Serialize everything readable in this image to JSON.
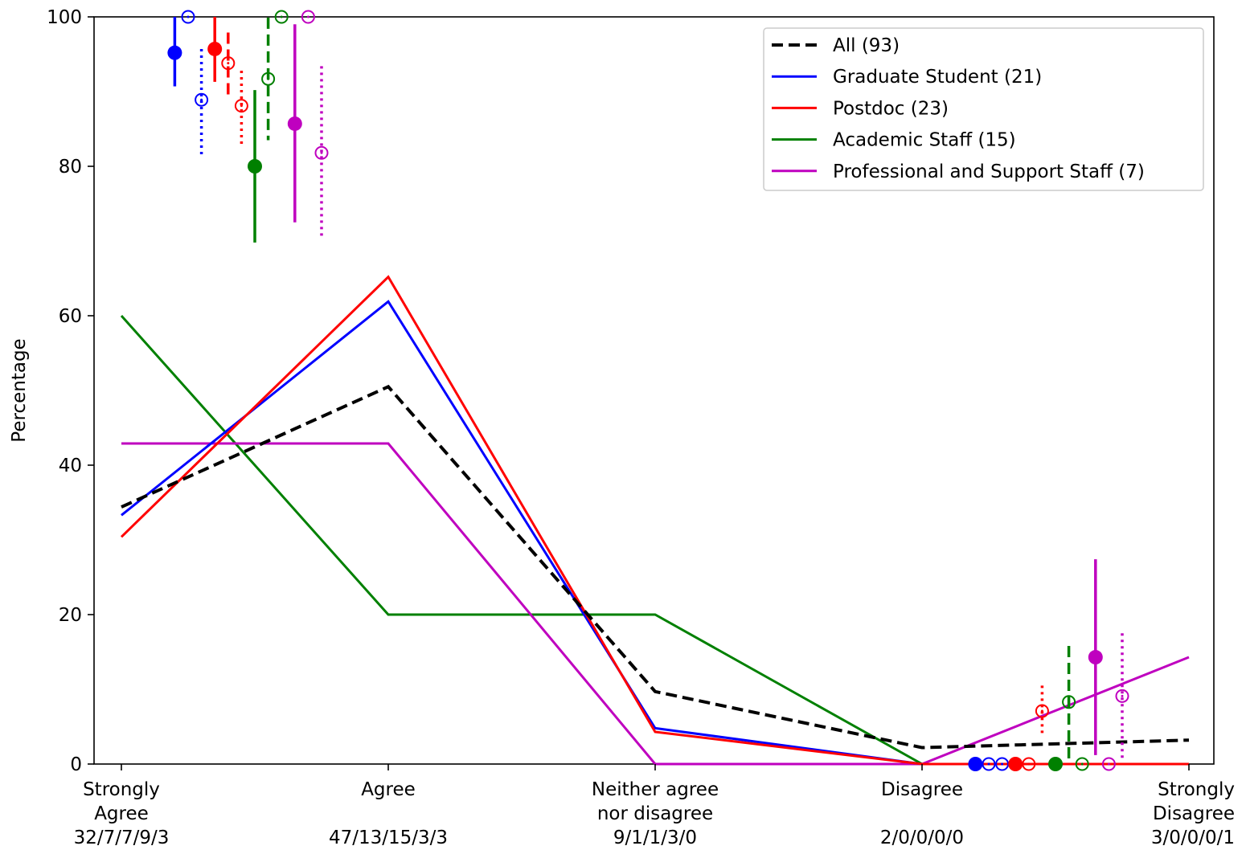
{
  "chart_data": {
    "type": "line",
    "ylabel": "Percentage",
    "ylim": [
      0,
      100
    ],
    "yticks": [
      "0",
      "20",
      "40",
      "60",
      "80",
      "100"
    ],
    "categories": [
      {
        "lines": [
          "Strongly",
          "Agree",
          "32/7/7/9/3"
        ]
      },
      {
        "lines": [
          "Agree",
          "",
          "47/13/15/3/3"
        ]
      },
      {
        "lines": [
          "Neither agree",
          "nor disagree",
          "9/1/1/3/0"
        ]
      },
      {
        "lines": [
          "Disagree",
          "",
          "2/0/0/0/0"
        ]
      },
      {
        "lines": [
          "Strongly",
          "Disagree",
          "3/0/0/0/1"
        ]
      }
    ],
    "legend_position": "top-right",
    "grid": false,
    "series": [
      {
        "name": "All (93)",
        "color": "#000000",
        "dash": "dashed",
        "values": [
          34.4,
          50.5,
          9.7,
          2.2,
          3.2
        ]
      },
      {
        "name": "Graduate Student (21)",
        "color": "#0000ff",
        "dash": "solid",
        "values": [
          33.3,
          61.9,
          4.8,
          0,
          0
        ]
      },
      {
        "name": "Postdoc (23)",
        "color": "#ff0000",
        "dash": "solid",
        "values": [
          30.4,
          65.2,
          4.3,
          0,
          0
        ]
      },
      {
        "name": "Academic Staff (15)",
        "color": "#008000",
        "dash": "solid",
        "values": [
          60.0,
          20.0,
          20.0,
          0,
          0
        ]
      },
      {
        "name": "Professional and Support Staff (7)",
        "color": "#bf00bf",
        "dash": "solid",
        "values": [
          42.9,
          42.9,
          0,
          0,
          14.3
        ]
      }
    ],
    "error_markers": {
      "top": [
        {
          "x": 1.2,
          "y": 95.2,
          "lo": 90.7,
          "hi": 100,
          "color": "#0000ff",
          "fill": true,
          "line": "solid"
        },
        {
          "x": 1.25,
          "y": 100,
          "lo": 100,
          "hi": 100,
          "color": "#0000ff",
          "fill": false,
          "line": "dashed"
        },
        {
          "x": 1.3,
          "y": 88.9,
          "lo": 81.5,
          "hi": 95.7,
          "color": "#0000ff",
          "fill": false,
          "line": "dotted"
        },
        {
          "x": 1.35,
          "y": 95.7,
          "lo": 91.3,
          "hi": 100,
          "color": "#ff0000",
          "fill": true,
          "line": "solid"
        },
        {
          "x": 1.4,
          "y": 93.8,
          "lo": 89.6,
          "hi": 97.9,
          "color": "#ff0000",
          "fill": false,
          "line": "dashed"
        },
        {
          "x": 1.45,
          "y": 88.1,
          "lo": 83.0,
          "hi": 92.8,
          "color": "#ff0000",
          "fill": false,
          "line": "dotted"
        },
        {
          "x": 1.5,
          "y": 80.0,
          "lo": 69.8,
          "hi": 90.2,
          "color": "#008000",
          "fill": true,
          "line": "solid"
        },
        {
          "x": 1.55,
          "y": 91.7,
          "lo": 83.5,
          "hi": 99.9,
          "color": "#008000",
          "fill": false,
          "line": "dashed"
        },
        {
          "x": 1.6,
          "y": 100,
          "lo": 100,
          "hi": 100,
          "color": "#008000",
          "fill": false,
          "line": "dotted"
        },
        {
          "x": 1.65,
          "y": 85.7,
          "lo": 72.5,
          "hi": 99.0,
          "color": "#bf00bf",
          "fill": true,
          "line": "solid"
        },
        {
          "x": 1.7,
          "y": 100,
          "lo": 100,
          "hi": 100,
          "color": "#bf00bf",
          "fill": false,
          "line": "dashed"
        },
        {
          "x": 1.75,
          "y": 81.8,
          "lo": 70.2,
          "hi": 93.4,
          "color": "#bf00bf",
          "fill": false,
          "line": "dotted"
        }
      ],
      "bottom": [
        {
          "x": 4.2,
          "y": 0,
          "lo": 0,
          "hi": 0,
          "color": "#0000ff",
          "fill": true,
          "line": "solid"
        },
        {
          "x": 4.25,
          "y": 0,
          "lo": 0,
          "hi": 0,
          "color": "#0000ff",
          "fill": false,
          "line": "dashed"
        },
        {
          "x": 4.3,
          "y": 0,
          "lo": 0,
          "hi": 0,
          "color": "#0000ff",
          "fill": false,
          "line": "dotted"
        },
        {
          "x": 4.35,
          "y": 0,
          "lo": 0,
          "hi": 0,
          "color": "#ff0000",
          "fill": true,
          "line": "solid"
        },
        {
          "x": 4.4,
          "y": 0,
          "lo": 0,
          "hi": 0,
          "color": "#ff0000",
          "fill": false,
          "line": "dashed"
        },
        {
          "x": 4.45,
          "y": 7.1,
          "lo": 3.7,
          "hi": 10.5,
          "color": "#ff0000",
          "fill": false,
          "line": "dotted"
        },
        {
          "x": 4.5,
          "y": 0,
          "lo": 0,
          "hi": 0,
          "color": "#008000",
          "fill": true,
          "line": "solid"
        },
        {
          "x": 4.55,
          "y": 8.3,
          "lo": 0.4,
          "hi": 15.8,
          "color": "#008000",
          "fill": false,
          "line": "dashed"
        },
        {
          "x": 4.6,
          "y": 0,
          "lo": 0,
          "hi": 0,
          "color": "#008000",
          "fill": false,
          "line": "dotted"
        },
        {
          "x": 4.65,
          "y": 14.3,
          "lo": 1.2,
          "hi": 27.4,
          "color": "#bf00bf",
          "fill": true,
          "line": "solid"
        },
        {
          "x": 4.7,
          "y": 0,
          "lo": 0,
          "hi": 0,
          "color": "#bf00bf",
          "fill": false,
          "line": "dashed"
        },
        {
          "x": 4.75,
          "y": 9.1,
          "lo": 0.7,
          "hi": 17.5,
          "color": "#bf00bf",
          "fill": false,
          "line": "dotted"
        }
      ]
    }
  }
}
